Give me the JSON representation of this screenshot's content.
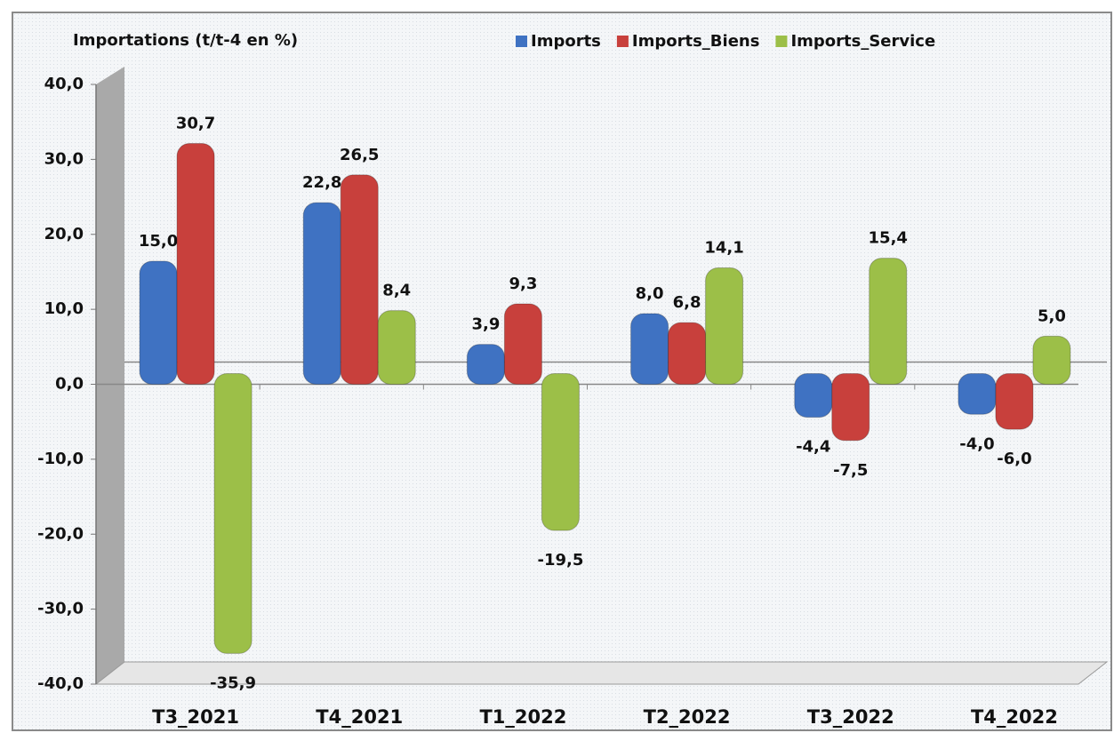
{
  "chart_data": {
    "type": "bar",
    "title": "Importations (t/t-4 en %)",
    "categories": [
      "T3_2021",
      "T4_2021",
      "T1_2022",
      "T2_2022",
      "T3_2022",
      "T4_2022"
    ],
    "series": [
      {
        "name": "Imports",
        "color": "#3f72c2",
        "values": [
          15.0,
          22.8,
          3.9,
          8.0,
          -4.4,
          -4.0
        ],
        "value_labels": [
          "15,0",
          "22,8",
          "3,9",
          "8,0",
          "-4,4",
          "-4,0"
        ]
      },
      {
        "name": "Imports_Biens",
        "color": "#c8403c",
        "values": [
          30.7,
          26.5,
          9.3,
          6.8,
          -7.5,
          -6.0
        ],
        "value_labels": [
          "30,7",
          "26,5",
          "9,3",
          "6,8",
          "-7,5",
          "-6,0"
        ]
      },
      {
        "name": "Imports_Service",
        "color": "#9cbf48",
        "values": [
          -35.9,
          8.4,
          -19.5,
          14.1,
          15.4,
          5.0
        ],
        "value_labels": [
          "-35,9",
          "8,4",
          "-19,5",
          "14,1",
          "15,4",
          "5,0"
        ]
      }
    ],
    "ylim": [
      -40,
      40
    ],
    "yticks": [
      {
        "value": -40,
        "label": "-40,0"
      },
      {
        "value": -30,
        "label": "-30,0"
      },
      {
        "value": -20,
        "label": "-20,0"
      },
      {
        "value": -10,
        "label": "-10,0"
      },
      {
        "value": 0,
        "label": "0,0"
      },
      {
        "value": 10,
        "label": "10,0"
      },
      {
        "value": 20,
        "label": "20,0"
      },
      {
        "value": 30,
        "label": "30,0"
      },
      {
        "value": 40,
        "label": "40,0"
      }
    ],
    "legend": "top-right"
  }
}
